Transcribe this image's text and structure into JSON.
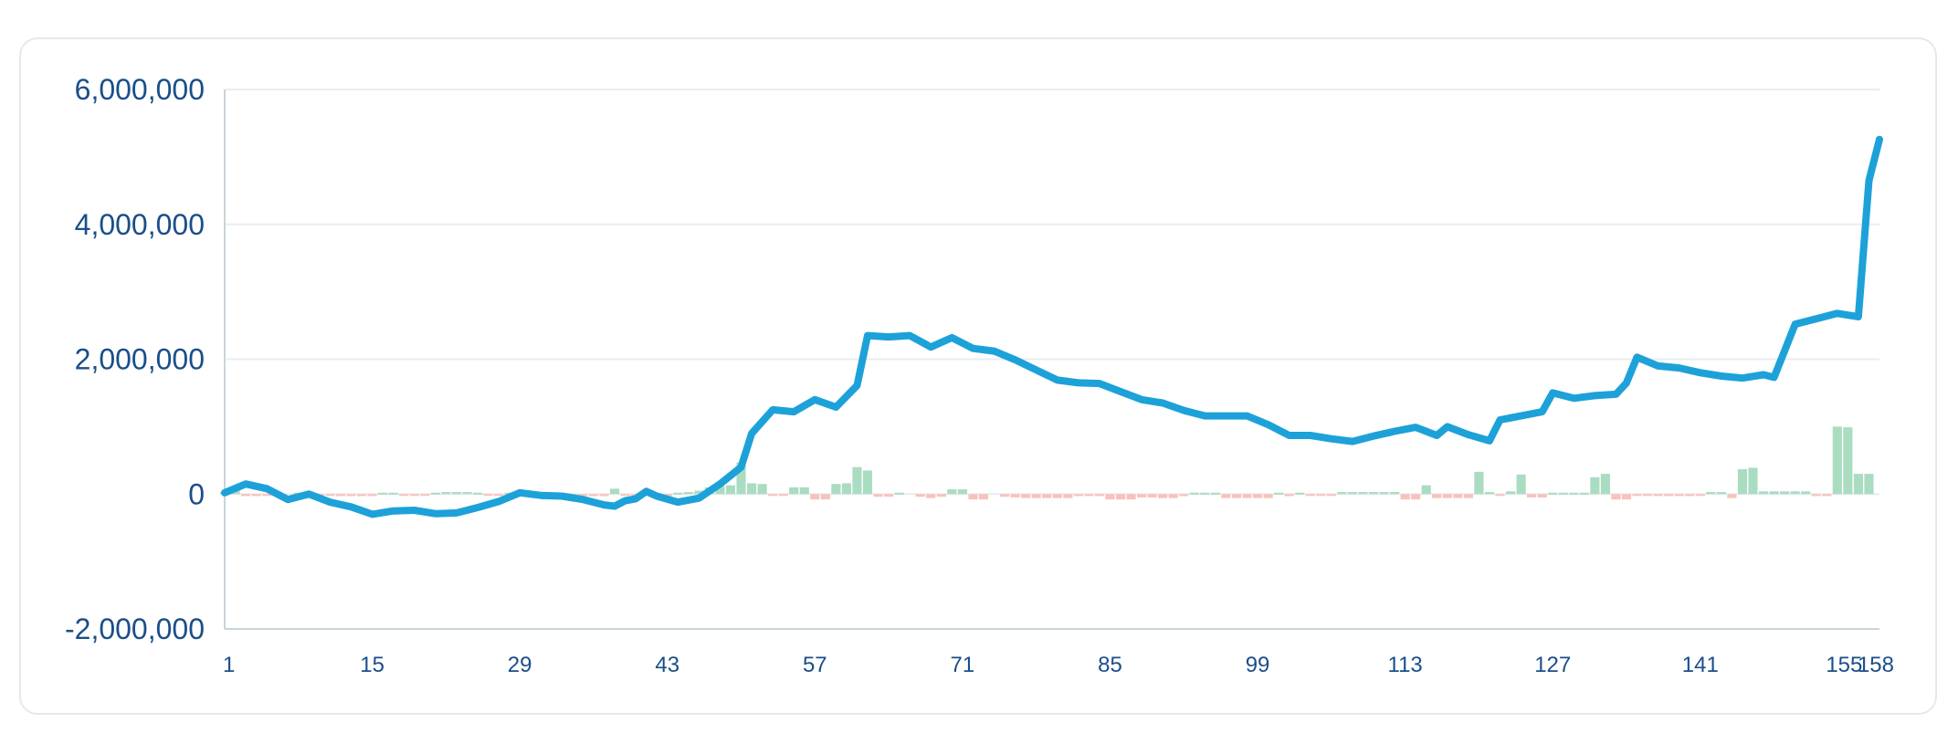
{
  "colors": {
    "line": "#1da1d9",
    "bar_positive": "#aadcc1",
    "bar_negative": "#f7c2bd",
    "axis_text": "#1a4e8a",
    "grid": "#e8edf1",
    "axis": "#c9d3da"
  },
  "chart_data": {
    "type": "line",
    "grid": true,
    "xlim": [
      1,
      158
    ],
    "ylim": [
      -2000000,
      6000000
    ],
    "xticks": [
      "1",
      "15",
      "29",
      "43",
      "57",
      "71",
      "85",
      "99",
      "113",
      "127",
      "141",
      "155",
      "158"
    ],
    "yticks": [
      {
        "value": -2000000,
        "label": "-2,000,000"
      },
      {
        "value": 0,
        "label": "0"
      },
      {
        "value": 2000000,
        "label": "2,000,000"
      },
      {
        "value": 4000000,
        "label": "4,000,000"
      },
      {
        "value": 6000000,
        "label": "6,000,000"
      }
    ],
    "series": [
      {
        "type": "line",
        "points": [
          [
            1,
            20000
          ],
          [
            3,
            150000
          ],
          [
            5,
            80000
          ],
          [
            7,
            -80000
          ],
          [
            9,
            0
          ],
          [
            11,
            -120000
          ],
          [
            13,
            -190000
          ],
          [
            15,
            -300000
          ],
          [
            17,
            -250000
          ],
          [
            19,
            -240000
          ],
          [
            21,
            -290000
          ],
          [
            23,
            -280000
          ],
          [
            25,
            -200000
          ],
          [
            27,
            -110000
          ],
          [
            29,
            20000
          ],
          [
            31,
            -20000
          ],
          [
            33,
            -30000
          ],
          [
            35,
            -80000
          ],
          [
            37,
            -160000
          ],
          [
            38,
            -180000
          ],
          [
            39,
            -100000
          ],
          [
            40,
            -70000
          ],
          [
            41,
            40000
          ],
          [
            42,
            -30000
          ],
          [
            44,
            -120000
          ],
          [
            46,
            -60000
          ],
          [
            48,
            150000
          ],
          [
            50,
            400000
          ],
          [
            51,
            900000
          ],
          [
            53,
            1250000
          ],
          [
            55,
            1220000
          ],
          [
            57,
            1400000
          ],
          [
            59,
            1290000
          ],
          [
            61,
            1610000
          ],
          [
            62,
            2350000
          ],
          [
            64,
            2330000
          ],
          [
            66,
            2350000
          ],
          [
            68,
            2180000
          ],
          [
            70,
            2320000
          ],
          [
            72,
            2160000
          ],
          [
            74,
            2120000
          ],
          [
            76,
            1990000
          ],
          [
            78,
            1840000
          ],
          [
            80,
            1690000
          ],
          [
            82,
            1650000
          ],
          [
            84,
            1640000
          ],
          [
            86,
            1520000
          ],
          [
            88,
            1400000
          ],
          [
            90,
            1350000
          ],
          [
            92,
            1240000
          ],
          [
            94,
            1160000
          ],
          [
            96,
            1160000
          ],
          [
            98,
            1160000
          ],
          [
            100,
            1030000
          ],
          [
            102,
            870000
          ],
          [
            104,
            870000
          ],
          [
            106,
            820000
          ],
          [
            108,
            780000
          ],
          [
            110,
            860000
          ],
          [
            112,
            930000
          ],
          [
            114,
            990000
          ],
          [
            116,
            870000
          ],
          [
            117,
            1000000
          ],
          [
            119,
            880000
          ],
          [
            121,
            790000
          ],
          [
            122,
            1100000
          ],
          [
            124,
            1160000
          ],
          [
            126,
            1220000
          ],
          [
            127,
            1500000
          ],
          [
            129,
            1420000
          ],
          [
            131,
            1460000
          ],
          [
            133,
            1480000
          ],
          [
            134,
            1650000
          ],
          [
            135,
            2030000
          ],
          [
            137,
            1900000
          ],
          [
            139,
            1870000
          ],
          [
            141,
            1800000
          ],
          [
            143,
            1750000
          ],
          [
            145,
            1720000
          ],
          [
            147,
            1770000
          ],
          [
            148,
            1730000
          ],
          [
            150,
            2520000
          ],
          [
            152,
            2600000
          ],
          [
            154,
            2680000
          ],
          [
            156,
            2630000
          ],
          [
            157,
            4650000
          ],
          [
            158,
            5260000
          ]
        ]
      },
      {
        "type": "bar",
        "values": [
          [
            1,
            30000
          ],
          [
            2,
            60000
          ],
          [
            3,
            -30000
          ],
          [
            4,
            -30000
          ],
          [
            5,
            -20000
          ],
          [
            6,
            -20000
          ],
          [
            8,
            20000
          ],
          [
            9,
            -10000
          ],
          [
            10,
            -20000
          ],
          [
            11,
            -20000
          ],
          [
            12,
            -30000
          ],
          [
            13,
            -30000
          ],
          [
            14,
            -30000
          ],
          [
            15,
            -30000
          ],
          [
            16,
            20000
          ],
          [
            17,
            20000
          ],
          [
            18,
            -20000
          ],
          [
            19,
            -20000
          ],
          [
            20,
            -20000
          ],
          [
            21,
            20000
          ],
          [
            22,
            30000
          ],
          [
            23,
            30000
          ],
          [
            24,
            30000
          ],
          [
            25,
            20000
          ],
          [
            26,
            -20000
          ],
          [
            27,
            -20000
          ],
          [
            28,
            20000
          ],
          [
            30,
            -10000
          ],
          [
            31,
            -20000
          ],
          [
            34,
            -20000
          ],
          [
            35,
            -30000
          ],
          [
            36,
            -30000
          ],
          [
            37,
            -30000
          ],
          [
            38,
            80000
          ],
          [
            39,
            -20000
          ],
          [
            40,
            -30000
          ],
          [
            41,
            -20000
          ],
          [
            43,
            -30000
          ],
          [
            44,
            20000
          ],
          [
            45,
            30000
          ],
          [
            46,
            50000
          ],
          [
            47,
            100000
          ],
          [
            48,
            120000
          ],
          [
            49,
            130000
          ],
          [
            50,
            470000
          ],
          [
            51,
            160000
          ],
          [
            52,
            150000
          ],
          [
            53,
            -10000
          ],
          [
            54,
            -10000
          ],
          [
            55,
            100000
          ],
          [
            56,
            100000
          ],
          [
            57,
            -80000
          ],
          [
            58,
            -80000
          ],
          [
            59,
            150000
          ],
          [
            60,
            160000
          ],
          [
            61,
            400000
          ],
          [
            62,
            350000
          ],
          [
            63,
            -40000
          ],
          [
            64,
            -40000
          ],
          [
            65,
            20000
          ],
          [
            67,
            -40000
          ],
          [
            68,
            -60000
          ],
          [
            69,
            -40000
          ],
          [
            70,
            70000
          ],
          [
            71,
            70000
          ],
          [
            72,
            -80000
          ],
          [
            73,
            -80000
          ],
          [
            75,
            -40000
          ],
          [
            76,
            -50000
          ],
          [
            77,
            -60000
          ],
          [
            78,
            -60000
          ],
          [
            79,
            -60000
          ],
          [
            80,
            -60000
          ],
          [
            81,
            -60000
          ],
          [
            82,
            -30000
          ],
          [
            83,
            -30000
          ],
          [
            84,
            -30000
          ],
          [
            85,
            -80000
          ],
          [
            86,
            -80000
          ],
          [
            87,
            -80000
          ],
          [
            88,
            -50000
          ],
          [
            89,
            -50000
          ],
          [
            90,
            -60000
          ],
          [
            91,
            -60000
          ],
          [
            92,
            -30000
          ],
          [
            93,
            20000
          ],
          [
            94,
            20000
          ],
          [
            95,
            20000
          ],
          [
            96,
            -60000
          ],
          [
            97,
            -60000
          ],
          [
            98,
            -60000
          ],
          [
            99,
            -60000
          ],
          [
            100,
            -60000
          ],
          [
            101,
            20000
          ],
          [
            102,
            -30000
          ],
          [
            103,
            20000
          ],
          [
            104,
            -20000
          ],
          [
            105,
            -20000
          ],
          [
            106,
            -20000
          ],
          [
            107,
            30000
          ],
          [
            108,
            30000
          ],
          [
            109,
            30000
          ],
          [
            110,
            30000
          ],
          [
            111,
            30000
          ],
          [
            112,
            30000
          ],
          [
            113,
            -80000
          ],
          [
            114,
            -80000
          ],
          [
            115,
            130000
          ],
          [
            116,
            -60000
          ],
          [
            117,
            -60000
          ],
          [
            118,
            -60000
          ],
          [
            119,
            -60000
          ],
          [
            120,
            330000
          ],
          [
            121,
            30000
          ],
          [
            122,
            -20000
          ],
          [
            123,
            40000
          ],
          [
            124,
            290000
          ],
          [
            125,
            -50000
          ],
          [
            126,
            -50000
          ],
          [
            127,
            20000
          ],
          [
            128,
            20000
          ],
          [
            129,
            20000
          ],
          [
            130,
            20000
          ],
          [
            131,
            250000
          ],
          [
            132,
            300000
          ],
          [
            133,
            -80000
          ],
          [
            134,
            -80000
          ],
          [
            135,
            -20000
          ],
          [
            136,
            -20000
          ],
          [
            137,
            -30000
          ],
          [
            138,
            -30000
          ],
          [
            139,
            -30000
          ],
          [
            140,
            -30000
          ],
          [
            141,
            -20000
          ],
          [
            142,
            30000
          ],
          [
            143,
            30000
          ],
          [
            144,
            -60000
          ],
          [
            145,
            370000
          ],
          [
            146,
            390000
          ],
          [
            147,
            40000
          ],
          [
            148,
            40000
          ],
          [
            149,
            40000
          ],
          [
            150,
            40000
          ],
          [
            151,
            40000
          ],
          [
            152,
            -30000
          ],
          [
            153,
            -30000
          ],
          [
            154,
            1000000
          ],
          [
            155,
            990000
          ],
          [
            156,
            300000
          ],
          [
            157,
            300000
          ]
        ]
      }
    ]
  }
}
